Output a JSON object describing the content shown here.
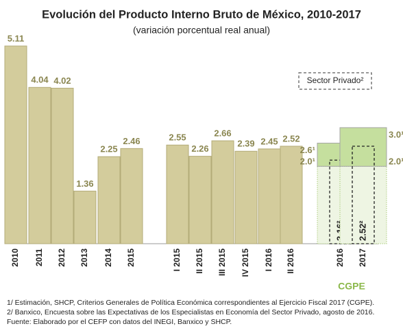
{
  "chart_data": {
    "type": "bar",
    "title": "Evolución del Producto Interno Bruto de México, 2010-2017",
    "subtitle": "(variación porcentual real anual)",
    "categories": [
      "2010",
      "2011",
      "2012",
      "2013",
      "2014",
      "2015",
      "I 2015",
      "II 2015",
      "III 2015",
      "IV 2015",
      "I 2016",
      "II 2016"
    ],
    "values": [
      5.11,
      4.04,
      4.02,
      1.36,
      2.25,
      2.46,
      2.55,
      2.26,
      2.66,
      2.39,
      2.45,
      2.52
    ],
    "color": "#d3cc9c",
    "forecast": {
      "label": "CGPE",
      "categories": [
        "2016",
        "2017"
      ],
      "color": "#c5df9e",
      "low": [
        2.0,
        2.0
      ],
      "high": [
        2.6,
        3.0
      ],
      "low_labels": [
        "2.0¹",
        "2.0¹"
      ],
      "high_labels": [
        "2.6¹",
        "3.0¹"
      ]
    },
    "private_sector": {
      "name": "Sector Privado²",
      "values": [
        2.16,
        2.52
      ],
      "value_labels": [
        "2.16²",
        "2.52²"
      ]
    },
    "footnotes": [
      "1/ Estimación, SHCP, Criterios Generales de Política Económica correspondientes al Ejercicio Fiscal 2017 (CGPE).",
      "2/ Banxico, Encuesta sobre las Expectativas de los Especialistas en Economía del Sector Privado, agosto de 2016.",
      "Fuente: Elaborado por el CEFP con datos del INEGI, Banxico y SHCP."
    ]
  }
}
